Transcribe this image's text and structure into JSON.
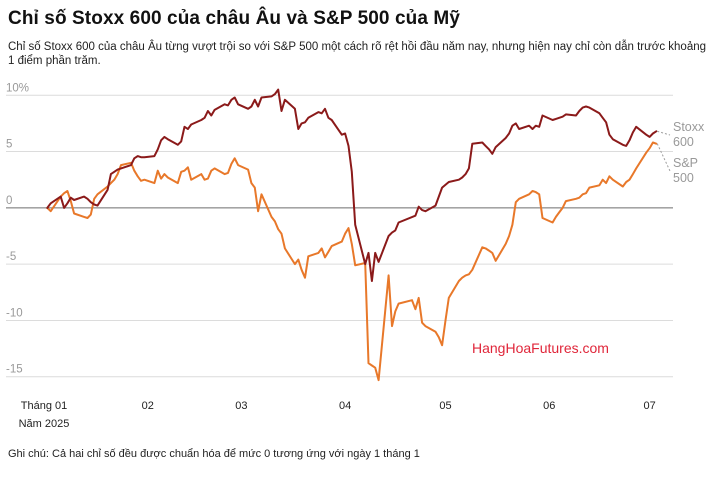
{
  "header": {
    "title": "Chỉ số Stoxx 600 của châu Âu và S&P 500 của Mỹ",
    "subtitle": "Chỉ số Stoxx 600 của châu Âu từng vượt trội so với S&P 500 một cách rõ rệt hồi đầu năm nay, nhưng hiện nay chỉ còn dẫn trước khoảng 1 điểm phần trăm."
  },
  "footnote": "Ghi chú: Cả hai chỉ số đều được chuẩn hóa để mức 0 tương ứng với ngày 1 tháng 1",
  "watermark": "HangHoaFutures.com",
  "chart_data": {
    "type": "line",
    "title": "Chỉ số Stoxx 600 của châu Âu và S&P 500 của Mỹ",
    "xlabel": "",
    "ylabel": "",
    "ylim": [
      -16,
      11
    ],
    "xlim": [
      "2025-01-01",
      "2025-07-08"
    ],
    "grid": "horizontal",
    "zero_line": true,
    "yticks": [
      {
        "value": 10,
        "label": "10%"
      },
      {
        "value": 5,
        "label": "5"
      },
      {
        "value": 0,
        "label": "0"
      },
      {
        "value": -5,
        "label": "-5"
      },
      {
        "value": -10,
        "label": "-10"
      },
      {
        "value": -15,
        "label": "-15"
      }
    ],
    "xticks": [
      {
        "date": "2025-01-01",
        "label": "Tháng 01",
        "sublabel": "Năm 2025"
      },
      {
        "date": "2025-02-01",
        "label": "02"
      },
      {
        "date": "2025-03-01",
        "label": "03"
      },
      {
        "date": "2025-04-01",
        "label": "04"
      },
      {
        "date": "2025-05-01",
        "label": "05"
      },
      {
        "date": "2025-06-01",
        "label": "06"
      },
      {
        "date": "2025-07-01",
        "label": "07"
      }
    ],
    "series": [
      {
        "name": "Stoxx 600",
        "label_lines": [
          "Stoxx",
          "600"
        ],
        "color": "#8b1a1a",
        "points": [
          [
            "2025-01-02",
            0.0
          ],
          [
            "2025-01-03",
            0.4
          ],
          [
            "2025-01-06",
            1.0
          ],
          [
            "2025-01-07",
            0.0
          ],
          [
            "2025-01-08",
            0.4
          ],
          [
            "2025-01-09",
            0.9
          ],
          [
            "2025-01-10",
            0.7
          ],
          [
            "2025-01-13",
            1.0
          ],
          [
            "2025-01-14",
            0.8
          ],
          [
            "2025-01-15",
            0.5
          ],
          [
            "2025-01-16",
            0.3
          ],
          [
            "2025-01-17",
            0.2
          ],
          [
            "2025-01-20",
            1.6
          ],
          [
            "2025-01-21",
            3.0
          ],
          [
            "2025-01-22",
            3.2
          ],
          [
            "2025-01-23",
            3.4
          ],
          [
            "2025-01-24",
            3.5
          ],
          [
            "2025-01-27",
            3.8
          ],
          [
            "2025-01-28",
            4.4
          ],
          [
            "2025-01-29",
            4.6
          ],
          [
            "2025-01-30",
            4.5
          ],
          [
            "2025-01-31",
            4.5
          ],
          [
            "2025-02-03",
            4.6
          ],
          [
            "2025-02-04",
            5.2
          ],
          [
            "2025-02-05",
            6.0
          ],
          [
            "2025-02-06",
            6.3
          ],
          [
            "2025-02-07",
            6.1
          ],
          [
            "2025-02-10",
            5.6
          ],
          [
            "2025-02-11",
            5.9
          ],
          [
            "2025-02-12",
            7.2
          ],
          [
            "2025-02-13",
            7.0
          ],
          [
            "2025-02-14",
            7.4
          ],
          [
            "2025-02-17",
            7.8
          ],
          [
            "2025-02-18",
            8.0
          ],
          [
            "2025-02-19",
            8.6
          ],
          [
            "2025-02-20",
            8.2
          ],
          [
            "2025-02-21",
            8.7
          ],
          [
            "2025-02-24",
            9.2
          ],
          [
            "2025-02-25",
            9.1
          ],
          [
            "2025-02-26",
            9.6
          ],
          [
            "2025-02-27",
            9.8
          ],
          [
            "2025-02-28",
            9.2
          ],
          [
            "2025-03-03",
            8.8
          ],
          [
            "2025-03-04",
            9.0
          ],
          [
            "2025-03-05",
            9.6
          ],
          [
            "2025-03-06",
            9.0
          ],
          [
            "2025-03-07",
            9.8
          ],
          [
            "2025-03-10",
            9.9
          ],
          [
            "2025-03-11",
            10.1
          ],
          [
            "2025-03-12",
            10.5
          ],
          [
            "2025-03-13",
            8.6
          ],
          [
            "2025-03-14",
            9.6
          ],
          [
            "2025-03-17",
            8.8
          ],
          [
            "2025-03-18",
            7.0
          ],
          [
            "2025-03-19",
            7.5
          ],
          [
            "2025-03-20",
            7.6
          ],
          [
            "2025-03-21",
            8.0
          ],
          [
            "2025-03-24",
            8.5
          ],
          [
            "2025-03-25",
            8.4
          ],
          [
            "2025-03-26",
            8.8
          ],
          [
            "2025-03-27",
            8.0
          ],
          [
            "2025-03-28",
            7.8
          ],
          [
            "2025-03-31",
            6.5
          ],
          [
            "2025-04-01",
            6.6
          ],
          [
            "2025-04-02",
            5.5
          ],
          [
            "2025-04-03",
            3.2
          ],
          [
            "2025-04-04",
            -1.5
          ],
          [
            "2025-04-07",
            -5.0
          ],
          [
            "2025-04-08",
            -4.0
          ],
          [
            "2025-04-09",
            -6.5
          ],
          [
            "2025-04-10",
            -4.0
          ],
          [
            "2025-04-11",
            -4.8
          ],
          [
            "2025-04-14",
            -2.5
          ],
          [
            "2025-04-15",
            -2.2
          ],
          [
            "2025-04-16",
            -2.0
          ],
          [
            "2025-04-17",
            -1.3
          ],
          [
            "2025-04-22",
            -0.7
          ],
          [
            "2025-04-23",
            0.1
          ],
          [
            "2025-04-24",
            -0.2
          ],
          [
            "2025-04-25",
            -0.3
          ],
          [
            "2025-04-28",
            0.2
          ],
          [
            "2025-04-29",
            1.0
          ],
          [
            "2025-04-30",
            1.8
          ],
          [
            "2025-05-02",
            2.3
          ],
          [
            "2025-05-05",
            2.5
          ],
          [
            "2025-05-06",
            2.7
          ],
          [
            "2025-05-07",
            3.0
          ],
          [
            "2025-05-08",
            3.5
          ],
          [
            "2025-05-09",
            5.7
          ],
          [
            "2025-05-12",
            5.8
          ],
          [
            "2025-05-13",
            5.5
          ],
          [
            "2025-05-14",
            5.2
          ],
          [
            "2025-05-15",
            4.8
          ],
          [
            "2025-05-16",
            5.4
          ],
          [
            "2025-05-19",
            6.2
          ],
          [
            "2025-05-20",
            6.6
          ],
          [
            "2025-05-21",
            7.3
          ],
          [
            "2025-05-22",
            7.5
          ],
          [
            "2025-05-23",
            7.0
          ],
          [
            "2025-05-26",
            7.3
          ],
          [
            "2025-05-27",
            7.0
          ],
          [
            "2025-05-28",
            7.3
          ],
          [
            "2025-05-29",
            7.2
          ],
          [
            "2025-05-30",
            8.2
          ],
          [
            "2025-06-02",
            7.8
          ],
          [
            "2025-06-03",
            7.9
          ],
          [
            "2025-06-04",
            8.0
          ],
          [
            "2025-06-05",
            8.1
          ],
          [
            "2025-06-06",
            8.3
          ],
          [
            "2025-06-09",
            8.2
          ],
          [
            "2025-06-10",
            8.6
          ],
          [
            "2025-06-11",
            8.9
          ],
          [
            "2025-06-12",
            9.0
          ],
          [
            "2025-06-13",
            8.9
          ],
          [
            "2025-06-16",
            8.4
          ],
          [
            "2025-06-17",
            8.0
          ],
          [
            "2025-06-18",
            7.6
          ],
          [
            "2025-06-19",
            6.5
          ],
          [
            "2025-06-20",
            6.1
          ],
          [
            "2025-06-23",
            5.6
          ],
          [
            "2025-06-24",
            5.5
          ],
          [
            "2025-06-25",
            6.0
          ],
          [
            "2025-06-26",
            6.7
          ],
          [
            "2025-06-27",
            7.2
          ],
          [
            "2025-06-30",
            6.5
          ],
          [
            "2025-07-01",
            6.3
          ],
          [
            "2025-07-02",
            6.6
          ],
          [
            "2025-07-03",
            6.8
          ]
        ]
      },
      {
        "name": "S&P 500",
        "label_lines": [
          "S&P",
          "500"
        ],
        "color": "#e8782a",
        "points": [
          [
            "2025-01-02",
            0.0
          ],
          [
            "2025-01-03",
            -0.3
          ],
          [
            "2025-01-06",
            1.0
          ],
          [
            "2025-01-07",
            1.3
          ],
          [
            "2025-01-08",
            1.5
          ],
          [
            "2025-01-09",
            0.6
          ],
          [
            "2025-01-10",
            -0.5
          ],
          [
            "2025-01-13",
            -0.8
          ],
          [
            "2025-01-14",
            -0.9
          ],
          [
            "2025-01-15",
            -0.6
          ],
          [
            "2025-01-16",
            0.8
          ],
          [
            "2025-01-17",
            1.2
          ],
          [
            "2025-01-20",
            1.9
          ],
          [
            "2025-01-21",
            2.2
          ],
          [
            "2025-01-22",
            2.5
          ],
          [
            "2025-01-23",
            3.0
          ],
          [
            "2025-01-24",
            3.8
          ],
          [
            "2025-01-27",
            4.0
          ],
          [
            "2025-01-28",
            3.3
          ],
          [
            "2025-01-29",
            2.8
          ],
          [
            "2025-01-30",
            2.4
          ],
          [
            "2025-01-31",
            2.5
          ],
          [
            "2025-02-03",
            2.2
          ],
          [
            "2025-02-04",
            3.3
          ],
          [
            "2025-02-05",
            2.6
          ],
          [
            "2025-02-06",
            3.0
          ],
          [
            "2025-02-07",
            2.7
          ],
          [
            "2025-02-10",
            2.2
          ],
          [
            "2025-02-11",
            3.2
          ],
          [
            "2025-02-12",
            3.3
          ],
          [
            "2025-02-13",
            3.6
          ],
          [
            "2025-02-14",
            2.5
          ],
          [
            "2025-02-17",
            3.0
          ],
          [
            "2025-02-18",
            2.5
          ],
          [
            "2025-02-19",
            2.6
          ],
          [
            "2025-02-20",
            3.3
          ],
          [
            "2025-02-21",
            3.5
          ],
          [
            "2025-02-24",
            3.0
          ],
          [
            "2025-02-25",
            3.1
          ],
          [
            "2025-02-26",
            3.9
          ],
          [
            "2025-02-27",
            4.4
          ],
          [
            "2025-02-28",
            3.8
          ],
          [
            "2025-03-03",
            3.4
          ],
          [
            "2025-03-04",
            2.2
          ],
          [
            "2025-03-05",
            1.8
          ],
          [
            "2025-03-06",
            -0.3
          ],
          [
            "2025-03-07",
            1.2
          ],
          [
            "2025-03-10",
            -0.8
          ],
          [
            "2025-03-11",
            -1.2
          ],
          [
            "2025-03-12",
            -1.9
          ],
          [
            "2025-03-13",
            -2.3
          ],
          [
            "2025-03-14",
            -3.6
          ],
          [
            "2025-03-17",
            -5.0
          ],
          [
            "2025-03-18",
            -4.6
          ],
          [
            "2025-03-19",
            -5.5
          ],
          [
            "2025-03-20",
            -6.2
          ],
          [
            "2025-03-21",
            -4.3
          ],
          [
            "2025-03-24",
            -4.0
          ],
          [
            "2025-03-25",
            -3.6
          ],
          [
            "2025-03-26",
            -4.4
          ],
          [
            "2025-03-27",
            -3.9
          ],
          [
            "2025-03-28",
            -3.4
          ],
          [
            "2025-03-31",
            -3.0
          ],
          [
            "2025-04-01",
            -2.3
          ],
          [
            "2025-04-02",
            -1.8
          ],
          [
            "2025-04-03",
            -3.2
          ],
          [
            "2025-04-04",
            -5.1
          ],
          [
            "2025-04-07",
            -4.9
          ],
          [
            "2025-04-08",
            -13.8
          ],
          [
            "2025-04-09",
            -14.0
          ],
          [
            "2025-04-10",
            -14.2
          ],
          [
            "2025-04-11",
            -15.3
          ],
          [
            "2025-04-14",
            -6.0
          ],
          [
            "2025-04-15",
            -10.5
          ],
          [
            "2025-04-16",
            -9.2
          ],
          [
            "2025-04-17",
            -8.5
          ],
          [
            "2025-04-21",
            -8.2
          ],
          [
            "2025-04-22",
            -9.0
          ],
          [
            "2025-04-23",
            -8.0
          ],
          [
            "2025-04-24",
            -10.2
          ],
          [
            "2025-04-25",
            -10.5
          ],
          [
            "2025-04-28",
            -11.0
          ],
          [
            "2025-04-29",
            -11.5
          ],
          [
            "2025-04-30",
            -12.2
          ],
          [
            "2025-05-01",
            -10.0
          ],
          [
            "2025-05-02",
            -8.0
          ],
          [
            "2025-05-05",
            -6.5
          ],
          [
            "2025-05-06",
            -6.2
          ],
          [
            "2025-05-07",
            -6.0
          ],
          [
            "2025-05-08",
            -5.9
          ],
          [
            "2025-05-09",
            -5.5
          ],
          [
            "2025-05-12",
            -3.5
          ],
          [
            "2025-05-13",
            -3.6
          ],
          [
            "2025-05-14",
            -3.8
          ],
          [
            "2025-05-15",
            -4.0
          ],
          [
            "2025-05-16",
            -4.7
          ],
          [
            "2025-05-19",
            -3.2
          ],
          [
            "2025-05-20",
            -2.5
          ],
          [
            "2025-05-21",
            -1.5
          ],
          [
            "2025-05-22",
            0.5
          ],
          [
            "2025-05-23",
            0.8
          ],
          [
            "2025-05-26",
            1.2
          ],
          [
            "2025-05-27",
            1.5
          ],
          [
            "2025-05-28",
            1.4
          ],
          [
            "2025-05-29",
            1.2
          ],
          [
            "2025-05-30",
            -0.9
          ],
          [
            "2025-06-02",
            -1.3
          ],
          [
            "2025-06-03",
            -0.8
          ],
          [
            "2025-06-04",
            -0.4
          ],
          [
            "2025-06-05",
            0.0
          ],
          [
            "2025-06-06",
            0.6
          ],
          [
            "2025-06-09",
            0.8
          ],
          [
            "2025-06-10",
            0.9
          ],
          [
            "2025-06-11",
            1.2
          ],
          [
            "2025-06-12",
            1.3
          ],
          [
            "2025-06-13",
            1.8
          ],
          [
            "2025-06-16",
            2.0
          ],
          [
            "2025-06-17",
            2.5
          ],
          [
            "2025-06-18",
            2.2
          ],
          [
            "2025-06-19",
            2.8
          ],
          [
            "2025-06-20",
            2.5
          ],
          [
            "2025-06-23",
            1.9
          ],
          [
            "2025-06-24",
            2.3
          ],
          [
            "2025-06-25",
            2.5
          ],
          [
            "2025-06-26",
            3.0
          ],
          [
            "2025-06-27",
            3.5
          ],
          [
            "2025-06-30",
            4.9
          ],
          [
            "2025-07-01",
            5.3
          ],
          [
            "2025-07-02",
            5.8
          ],
          [
            "2025-07-03",
            5.7
          ]
        ]
      }
    ]
  }
}
